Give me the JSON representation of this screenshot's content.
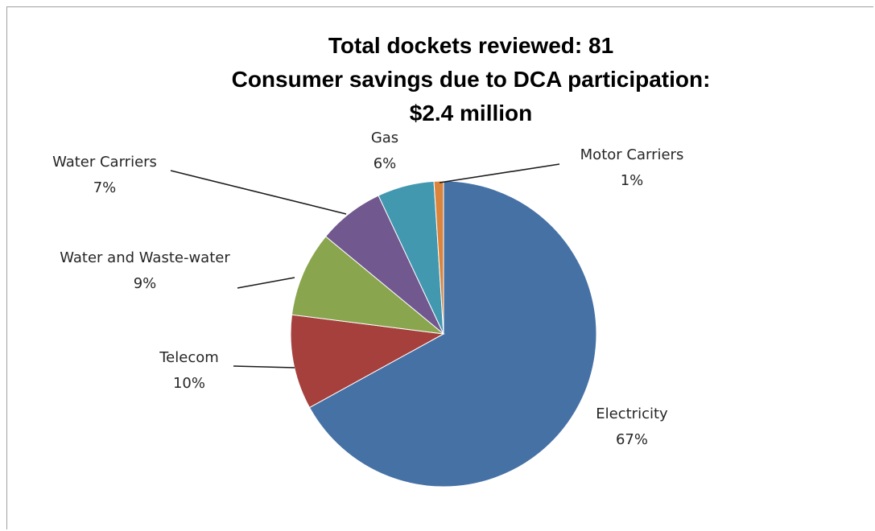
{
  "chart_data": {
    "type": "pie",
    "title_lines": [
      "Total dockets reviewed: 81",
      "Consumer savings due to DCA participation:",
      "$2.4 million"
    ],
    "slices": [
      {
        "label": "Electricity",
        "value": 67,
        "percent_label": "67%",
        "color": "#4671a5"
      },
      {
        "label": "Telecom",
        "value": 10,
        "percent_label": "10%",
        "color": "#a5403d"
      },
      {
        "label": "Water and Waste-water",
        "value": 9,
        "percent_label": "9%",
        "color": "#89a54e"
      },
      {
        "label": "Water Carriers",
        "value": 7,
        "percent_label": "7%",
        "color": "#71588f"
      },
      {
        "label": "Gas",
        "value": 6,
        "percent_label": "6%",
        "color": "#4198af"
      },
      {
        "label": "Motor Carriers",
        "value": 1,
        "percent_label": "1%",
        "color": "#db843d"
      }
    ],
    "legend": "none",
    "data_labels": "outside with leader lines"
  }
}
